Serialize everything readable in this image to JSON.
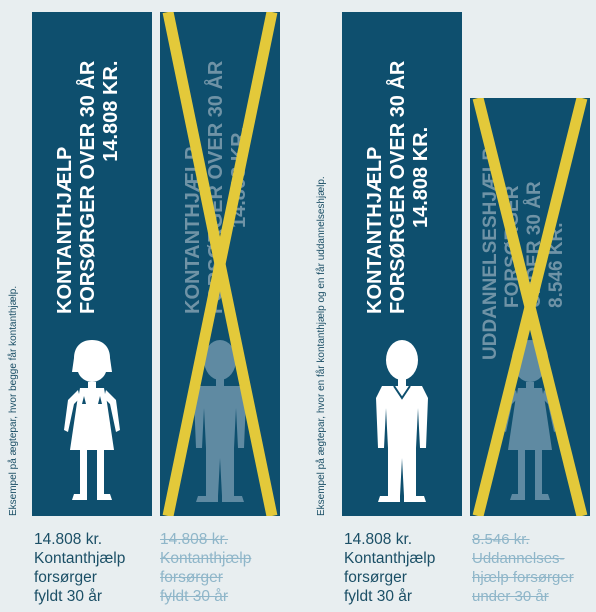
{
  "colors": {
    "background": "#e8eef0",
    "panel": "#0e4f6e",
    "cross": "#e3c93a",
    "text_dark": "#1b4f66",
    "text_struck": "#8fb6c9"
  },
  "left_group": {
    "side_label": "Eksempel på ægtepar, hvor begge får kontanthjælp.",
    "panels": [
      {
        "heading_lines": [
          "KONTANTHJÆLP",
          "FORSØRGER OVER 30 ÅR",
          "14.808 KR."
        ],
        "figure_icon": "woman-icon",
        "crossed": false,
        "caption_lines": [
          "14.808 kr.",
          "Kontanthjælp",
          "forsørger",
          "fyldt 30 år"
        ]
      },
      {
        "heading_lines": [
          "KONTANTHJÆLP",
          "FORSØRGER OVER 30 ÅR",
          "14.808 KR."
        ],
        "figure_icon": "man-icon",
        "crossed": true,
        "caption_lines": [
          "14.808 kr.",
          "Kontanthjælp",
          "forsørger",
          "fyldt 30 år"
        ]
      }
    ]
  },
  "right_group": {
    "side_label": "Eksempel på ægtepar, hvor en får kontanthjælp og en får uddannelseshjælp.",
    "panels": [
      {
        "heading_lines": [
          "KONTANTHJÆLP",
          "FORSØRGER OVER 30 ÅR",
          "14.808 KR."
        ],
        "figure_icon": "man-icon",
        "crossed": false,
        "caption_lines": [
          "14.808 kr.",
          "Kontanthjælp",
          "forsørger",
          "fyldt 30 år"
        ]
      },
      {
        "heading_lines": [
          "UDDANNELSESHJÆLP",
          "FORSØRGER",
          "UNDER 30 ÅR",
          "8.546 KR."
        ],
        "figure_icon": "woman-icon",
        "crossed": true,
        "caption_lines": [
          "8.546 kr.",
          "Uddannelses-",
          "hjælp forsørger",
          "under 30 år"
        ]
      }
    ]
  }
}
